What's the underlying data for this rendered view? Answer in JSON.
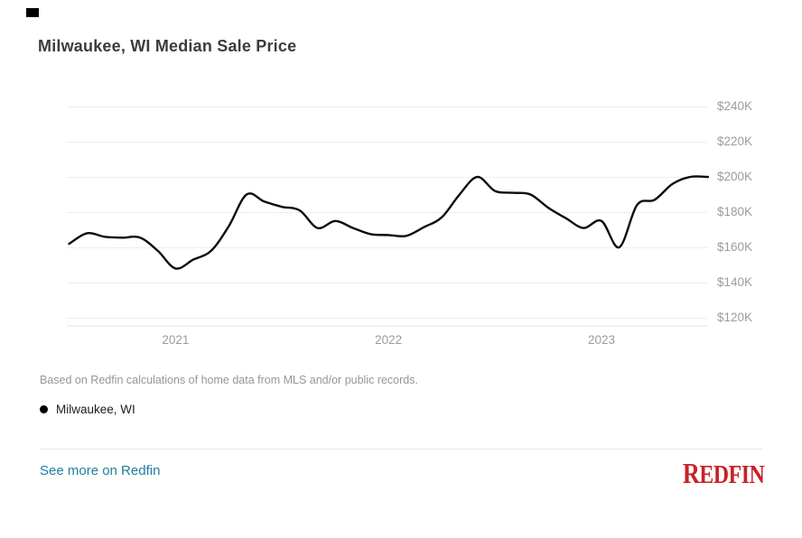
{
  "header": {
    "title": "Milwaukee, WI Median Sale Price"
  },
  "chart_data": {
    "type": "line",
    "title": "Milwaukee, WI Median Sale Price",
    "values_unit": "USD thousands",
    "x": [
      "2020-07",
      "2020-08",
      "2020-09",
      "2020-10",
      "2020-11",
      "2020-12",
      "2021-01",
      "2021-02",
      "2021-03",
      "2021-04",
      "2021-05",
      "2021-06",
      "2021-07",
      "2021-08",
      "2021-09",
      "2021-10",
      "2021-11",
      "2021-12",
      "2022-01",
      "2022-02",
      "2022-03",
      "2022-04",
      "2022-05",
      "2022-06",
      "2022-07",
      "2022-08",
      "2022-09",
      "2022-10",
      "2022-11",
      "2022-12",
      "2023-01",
      "2023-02",
      "2023-03",
      "2023-04",
      "2023-05",
      "2023-06",
      "2023-07"
    ],
    "series": [
      {
        "name": "Milwaukee, WI",
        "color": "#0c0c0c",
        "values": [
          162,
          168,
          166,
          165.5,
          165.5,
          158,
          148,
          153,
          158,
          172,
          190,
          186,
          183,
          181,
          171,
          175,
          171,
          167.5,
          167,
          166.5,
          171.5,
          177,
          190,
          200,
          192,
          191,
          190,
          182.5,
          176.5,
          171,
          175,
          160,
          184,
          187,
          196,
          200,
          200
        ]
      }
    ],
    "y_ticks": [
      "$240K",
      "$220K",
      "$200K",
      "$180K",
      "$160K",
      "$140K",
      "$120K"
    ],
    "y_tick_values": [
      240,
      220,
      200,
      180,
      160,
      140,
      120
    ],
    "x_tick_labels": [
      "2021",
      "2022",
      "2023"
    ],
    "x_tick_month_index": [
      6,
      18,
      30
    ],
    "ylim": [
      112,
      248
    ],
    "grid": "horizontal",
    "y_axis_side": "right",
    "legend_position": "below"
  },
  "footnote": "Based on Redfin calculations of home data from MLS and/or public records.",
  "legend": {
    "label": "Milwaukee, WI",
    "dot_color": "#000000"
  },
  "footer": {
    "link": "See more on Redfin",
    "link_color": "#1f7e9d",
    "logo_initial": "R",
    "logo_rest": "EDFIN",
    "logo_color": "#c82127"
  }
}
